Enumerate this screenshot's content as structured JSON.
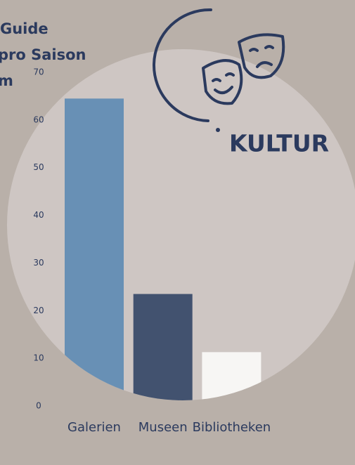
{
  "chart_data": {
    "type": "bar",
    "title_lines": [
      "Guide",
      "pro Saison",
      "m"
    ],
    "badge": "KULTUR",
    "categories": [
      "Galerien",
      "Museen",
      "Bibliotheken"
    ],
    "values": [
      64.5,
      23.5,
      11.3
    ],
    "colors": [
      "#6890b5",
      "#42526f",
      "#f7f6f4"
    ],
    "ylim": [
      0,
      70
    ],
    "yticks": [
      0,
      10,
      20,
      30,
      40,
      50,
      60,
      70
    ],
    "grid": false
  }
}
